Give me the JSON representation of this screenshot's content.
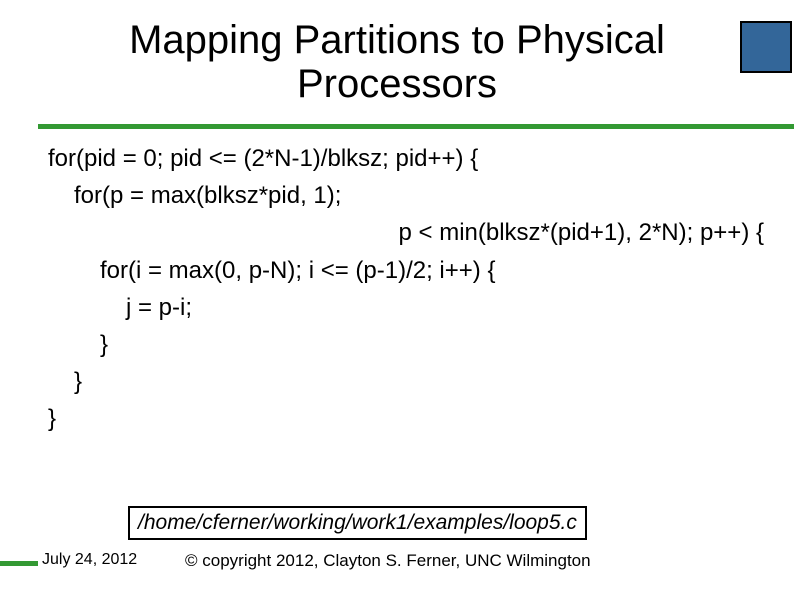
{
  "title_line1": "Mapping Partitions to Physical",
  "title_line2": "Processors",
  "code": {
    "l1": "for(pid = 0; pid <= (2*N-1)/blksz; pid++) {",
    "l2": "for(p = max(blksz*pid, 1);",
    "l3": "p < min(blksz*(pid+1), 2*N); p++) {",
    "l4": "for(i = max(0, p-N); i <= (p-1)/2; i++) {",
    "l5": "j = p-i;",
    "l6": "}",
    "l7": "}",
    "l8": "}"
  },
  "path": "/home/cferner/working/work1/examples/loop5.c",
  "footer_date": "July 24, 2012",
  "footer_copy": "© copyright 2012, Clayton S. Ferner, UNC Wilmington",
  "colors": {
    "accent_green": "#339933",
    "accent_blue": "#336699"
  }
}
